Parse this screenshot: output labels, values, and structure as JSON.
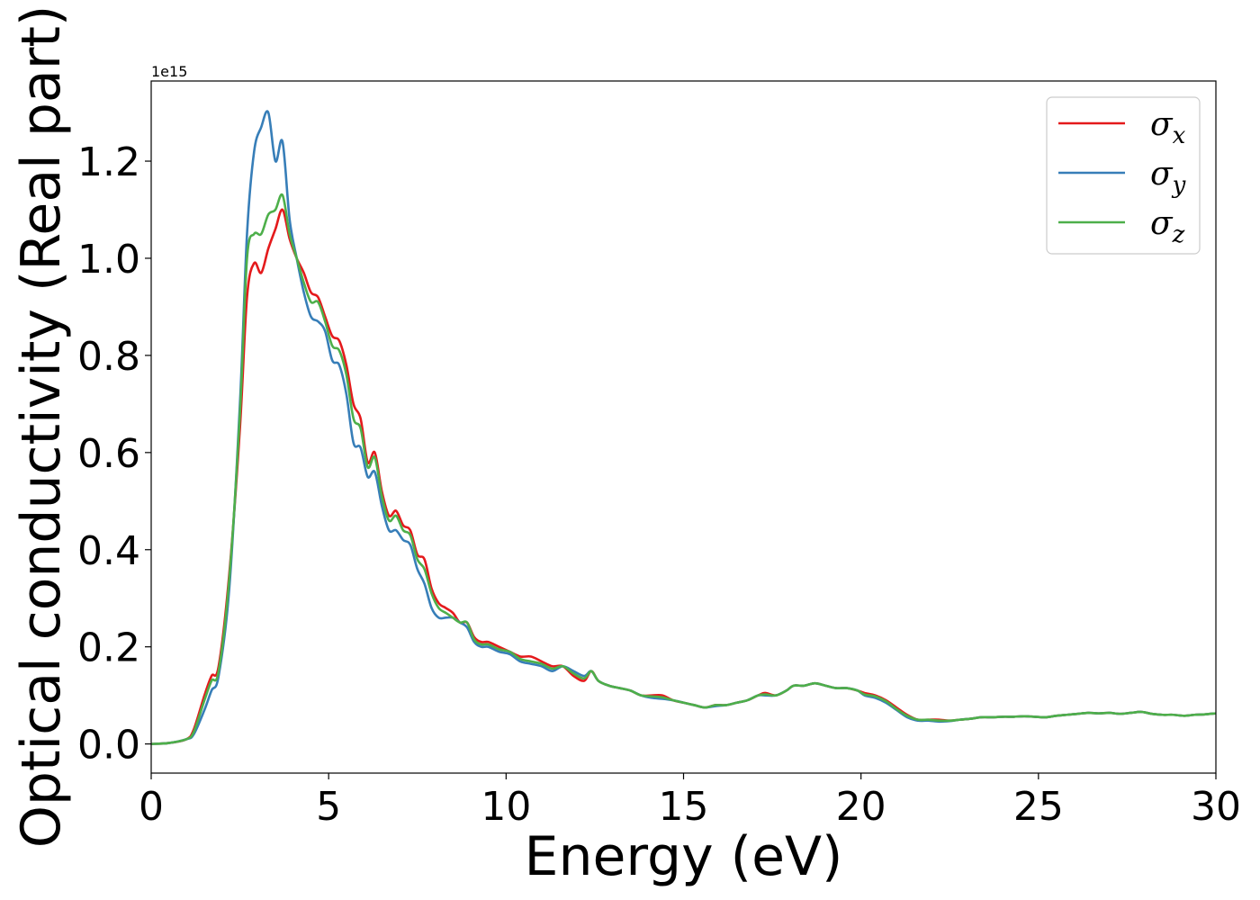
{
  "chart_data": {
    "type": "line",
    "title": "",
    "xlabel": "Energy (eV)",
    "ylabel": "Optical conductivity (Real part)",
    "y_offset_label": "1e15",
    "xlim": [
      0,
      30
    ],
    "ylim": [
      -0.06,
      1.365
    ],
    "x_ticks": [
      0,
      5,
      10,
      15,
      20,
      25,
      30
    ],
    "x_tick_labels": [
      "0",
      "5",
      "10",
      "15",
      "20",
      "25",
      "30"
    ],
    "y_ticks": [
      0.0,
      0.2,
      0.4,
      0.6,
      0.8,
      1.0,
      1.2
    ],
    "y_tick_labels": [
      "0.0",
      "0.2",
      "0.4",
      "0.6",
      "0.8",
      "1.0",
      "1.2"
    ],
    "grid": false,
    "legend_position": "top-right",
    "series": [
      {
        "name": "σx",
        "symbol": "σ",
        "subscript": "x",
        "color": "#e41a1c",
        "x": [
          0,
          0.5,
          1.0,
          1.2,
          1.5,
          1.7,
          1.9,
          2.2,
          2.5,
          2.7,
          2.9,
          3.1,
          3.3,
          3.5,
          3.7,
          3.9,
          4.1,
          4.3,
          4.5,
          4.7,
          4.9,
          5.1,
          5.3,
          5.5,
          5.7,
          5.9,
          6.1,
          6.3,
          6.5,
          6.7,
          6.9,
          7.1,
          7.3,
          7.5,
          7.7,
          7.9,
          8.1,
          8.3,
          8.5,
          8.7,
          8.9,
          9.1,
          9.3,
          9.5,
          9.8,
          10.1,
          10.4,
          10.7,
          11.0,
          11.3,
          11.6,
          11.9,
          12.2,
          12.4,
          12.6,
          12.9,
          13.2,
          13.5,
          13.8,
          14.1,
          14.4,
          14.7,
          15.0,
          15.3,
          15.6,
          15.9,
          16.2,
          16.5,
          16.8,
          17.1,
          17.3,
          17.6,
          17.9,
          18.1,
          18.4,
          18.7,
          19.0,
          19.3,
          19.6,
          19.9,
          20.1,
          20.4,
          20.7,
          21.0,
          21.3,
          21.6,
          21.9,
          22.2,
          22.5,
          22.8,
          23.1,
          23.4,
          23.7,
          24.0,
          24.3,
          24.6,
          24.9,
          25.2,
          25.5,
          25.8,
          26.1,
          26.4,
          26.7,
          27.0,
          27.3,
          27.6,
          27.9,
          28.2,
          28.5,
          28.8,
          29.1,
          29.4,
          29.7,
          30.0
        ],
        "y": [
          0.0,
          0.002,
          0.01,
          0.03,
          0.1,
          0.14,
          0.16,
          0.35,
          0.65,
          0.92,
          0.99,
          0.97,
          1.02,
          1.06,
          1.1,
          1.04,
          1.0,
          0.97,
          0.93,
          0.92,
          0.88,
          0.84,
          0.83,
          0.78,
          0.7,
          0.67,
          0.58,
          0.6,
          0.52,
          0.47,
          0.48,
          0.45,
          0.44,
          0.39,
          0.38,
          0.32,
          0.29,
          0.28,
          0.27,
          0.25,
          0.25,
          0.22,
          0.21,
          0.21,
          0.2,
          0.19,
          0.18,
          0.18,
          0.17,
          0.16,
          0.16,
          0.14,
          0.13,
          0.15,
          0.13,
          0.12,
          0.115,
          0.11,
          0.1,
          0.1,
          0.1,
          0.09,
          0.085,
          0.08,
          0.075,
          0.08,
          0.08,
          0.085,
          0.09,
          0.1,
          0.105,
          0.1,
          0.11,
          0.12,
          0.12,
          0.125,
          0.12,
          0.115,
          0.115,
          0.11,
          0.105,
          0.1,
          0.09,
          0.075,
          0.06,
          0.05,
          0.05,
          0.05,
          0.048,
          0.05,
          0.052,
          0.055,
          0.055,
          0.056,
          0.056,
          0.057,
          0.056,
          0.055,
          0.058,
          0.06,
          0.062,
          0.064,
          0.063,
          0.064,
          0.062,
          0.064,
          0.066,
          0.062,
          0.06,
          0.06,
          0.058,
          0.06,
          0.061,
          0.063
        ]
      },
      {
        "name": "σy",
        "symbol": "σ",
        "subscript": "y",
        "color": "#377eb8",
        "x": [
          0,
          0.5,
          1.0,
          1.2,
          1.5,
          1.7,
          1.9,
          2.2,
          2.5,
          2.7,
          2.9,
          3.1,
          3.3,
          3.5,
          3.7,
          3.9,
          4.1,
          4.3,
          4.5,
          4.7,
          4.9,
          5.1,
          5.3,
          5.5,
          5.7,
          5.9,
          6.1,
          6.3,
          6.5,
          6.7,
          6.9,
          7.1,
          7.3,
          7.5,
          7.7,
          7.9,
          8.1,
          8.3,
          8.5,
          8.7,
          8.9,
          9.1,
          9.3,
          9.5,
          9.8,
          10.1,
          10.4,
          10.7,
          11.0,
          11.3,
          11.6,
          11.9,
          12.2,
          12.4,
          12.6,
          12.9,
          13.2,
          13.5,
          13.8,
          14.1,
          14.4,
          14.7,
          15.0,
          15.3,
          15.6,
          15.9,
          16.2,
          16.5,
          16.8,
          17.1,
          17.3,
          17.6,
          17.9,
          18.1,
          18.4,
          18.7,
          19.0,
          19.3,
          19.6,
          19.9,
          20.1,
          20.4,
          20.7,
          21.0,
          21.3,
          21.6,
          21.9,
          22.2,
          22.5,
          22.8,
          23.1,
          23.4,
          23.7,
          24.0,
          24.3,
          24.6,
          24.9,
          25.2,
          25.5,
          25.8,
          26.1,
          26.4,
          26.7,
          27.0,
          27.3,
          27.6,
          27.9,
          28.2,
          28.5,
          28.8,
          29.1,
          29.4,
          29.7,
          30.0
        ],
        "y": [
          0.0,
          0.002,
          0.01,
          0.02,
          0.07,
          0.11,
          0.14,
          0.32,
          0.7,
          1.05,
          1.22,
          1.27,
          1.3,
          1.2,
          1.24,
          1.08,
          1.0,
          0.93,
          0.88,
          0.87,
          0.85,
          0.79,
          0.78,
          0.72,
          0.62,
          0.61,
          0.55,
          0.56,
          0.49,
          0.44,
          0.44,
          0.42,
          0.41,
          0.36,
          0.33,
          0.28,
          0.26,
          0.26,
          0.26,
          0.25,
          0.24,
          0.21,
          0.2,
          0.2,
          0.19,
          0.185,
          0.17,
          0.165,
          0.16,
          0.15,
          0.16,
          0.15,
          0.14,
          0.15,
          0.13,
          0.12,
          0.115,
          0.11,
          0.1,
          0.095,
          0.093,
          0.09,
          0.085,
          0.08,
          0.075,
          0.078,
          0.08,
          0.085,
          0.09,
          0.1,
          0.1,
          0.1,
          0.11,
          0.12,
          0.12,
          0.125,
          0.12,
          0.115,
          0.115,
          0.11,
          0.1,
          0.095,
          0.085,
          0.07,
          0.055,
          0.048,
          0.048,
          0.046,
          0.047,
          0.05,
          0.052,
          0.055,
          0.055,
          0.056,
          0.056,
          0.057,
          0.056,
          0.055,
          0.058,
          0.06,
          0.062,
          0.064,
          0.063,
          0.064,
          0.062,
          0.064,
          0.066,
          0.062,
          0.06,
          0.06,
          0.058,
          0.06,
          0.061,
          0.063
        ]
      },
      {
        "name": "σz",
        "symbol": "σ",
        "subscript": "z",
        "color": "#4daf4a",
        "x": [
          0,
          0.5,
          1.0,
          1.2,
          1.5,
          1.7,
          1.9,
          2.2,
          2.5,
          2.7,
          2.9,
          3.1,
          3.3,
          3.5,
          3.7,
          3.9,
          4.1,
          4.3,
          4.5,
          4.7,
          4.9,
          5.1,
          5.3,
          5.5,
          5.7,
          5.9,
          6.1,
          6.3,
          6.5,
          6.7,
          6.9,
          7.1,
          7.3,
          7.5,
          7.7,
          7.9,
          8.1,
          8.3,
          8.5,
          8.7,
          8.9,
          9.1,
          9.3,
          9.5,
          9.8,
          10.1,
          10.4,
          10.7,
          11.0,
          11.3,
          11.6,
          11.9,
          12.2,
          12.4,
          12.6,
          12.9,
          13.2,
          13.5,
          13.8,
          14.1,
          14.4,
          14.7,
          15.0,
          15.3,
          15.6,
          15.9,
          16.2,
          16.5,
          16.8,
          17.1,
          17.3,
          17.6,
          17.9,
          18.1,
          18.4,
          18.7,
          19.0,
          19.3,
          19.6,
          19.9,
          20.1,
          20.4,
          20.7,
          21.0,
          21.3,
          21.6,
          21.9,
          22.2,
          22.5,
          22.8,
          23.1,
          23.4,
          23.7,
          24.0,
          24.3,
          24.6,
          24.9,
          25.2,
          25.5,
          25.8,
          26.1,
          26.4,
          26.7,
          27.0,
          27.3,
          27.6,
          27.9,
          28.2,
          28.5,
          28.8,
          29.1,
          29.4,
          29.7,
          30.0
        ],
        "y": [
          0.0,
          0.002,
          0.01,
          0.025,
          0.09,
          0.13,
          0.15,
          0.34,
          0.68,
          1.0,
          1.05,
          1.05,
          1.09,
          1.1,
          1.13,
          1.05,
          1.0,
          0.95,
          0.91,
          0.91,
          0.87,
          0.82,
          0.81,
          0.76,
          0.67,
          0.65,
          0.57,
          0.59,
          0.51,
          0.46,
          0.47,
          0.44,
          0.43,
          0.38,
          0.36,
          0.31,
          0.28,
          0.27,
          0.26,
          0.25,
          0.25,
          0.215,
          0.205,
          0.205,
          0.195,
          0.19,
          0.175,
          0.17,
          0.165,
          0.155,
          0.16,
          0.145,
          0.135,
          0.15,
          0.13,
          0.12,
          0.115,
          0.11,
          0.1,
          0.098,
          0.096,
          0.09,
          0.085,
          0.08,
          0.075,
          0.08,
          0.08,
          0.085,
          0.09,
          0.1,
          0.102,
          0.1,
          0.11,
          0.12,
          0.12,
          0.125,
          0.12,
          0.115,
          0.115,
          0.11,
          0.102,
          0.098,
          0.088,
          0.072,
          0.058,
          0.05,
          0.05,
          0.048,
          0.048,
          0.05,
          0.052,
          0.055,
          0.055,
          0.056,
          0.056,
          0.057,
          0.056,
          0.055,
          0.058,
          0.06,
          0.062,
          0.064,
          0.063,
          0.064,
          0.062,
          0.064,
          0.066,
          0.062,
          0.06,
          0.06,
          0.058,
          0.06,
          0.061,
          0.063
        ]
      }
    ]
  }
}
